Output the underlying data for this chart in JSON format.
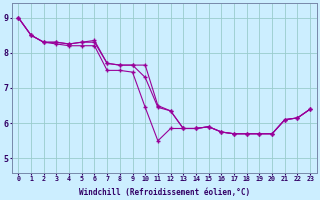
{
  "bg_color": "#cceeff",
  "line_color": "#990099",
  "grid_color": "#99cccc",
  "xlabel": "Windchill (Refroidissement éolien,°C)",
  "x_ticks": [
    0,
    1,
    2,
    3,
    4,
    5,
    6,
    7,
    8,
    9,
    10,
    11,
    12,
    13,
    14,
    15,
    16,
    17,
    18,
    19,
    20,
    21,
    22,
    23
  ],
  "y_ticks": [
    5,
    6,
    7,
    8,
    9
  ],
  "ylim": [
    4.6,
    9.4
  ],
  "xlim": [
    -0.5,
    23.5
  ],
  "line1_x": [
    0,
    1,
    2,
    3,
    4,
    5,
    6,
    7,
    8,
    9,
    10,
    11,
    12,
    13,
    14,
    15,
    16,
    17,
    18,
    19,
    20,
    21,
    22,
    23
  ],
  "line1_y": [
    9.0,
    8.5,
    8.3,
    8.3,
    8.25,
    8.3,
    8.3,
    7.7,
    7.65,
    7.65,
    7.3,
    6.45,
    6.35,
    5.85,
    5.85,
    5.9,
    5.75,
    5.7,
    5.7,
    5.7,
    5.7,
    6.1,
    6.15,
    6.4
  ],
  "line2_x": [
    0,
    1,
    2,
    3,
    4,
    5,
    6,
    7,
    8,
    9,
    10,
    11,
    12,
    13,
    14,
    15,
    16,
    17,
    18,
    19,
    20,
    21,
    22,
    23
  ],
  "line2_y": [
    9.0,
    8.5,
    8.3,
    8.3,
    8.25,
    8.3,
    8.35,
    7.7,
    7.65,
    7.65,
    7.65,
    6.5,
    6.35,
    5.85,
    5.85,
    5.9,
    5.75,
    5.7,
    5.7,
    5.7,
    5.7,
    6.1,
    6.15,
    6.4
  ],
  "line3_x": [
    0,
    1,
    2,
    3,
    4,
    5,
    6,
    7,
    8,
    9,
    10,
    11,
    12,
    13,
    14,
    15,
    16,
    17,
    18,
    19,
    20,
    21,
    22,
    23
  ],
  "line3_y": [
    9.0,
    8.5,
    8.3,
    8.25,
    8.2,
    8.2,
    8.2,
    7.5,
    7.5,
    7.45,
    6.45,
    5.5,
    5.85,
    5.85,
    5.85,
    5.9,
    5.75,
    5.7,
    5.7,
    5.7,
    5.7,
    6.1,
    6.15,
    6.4
  ]
}
